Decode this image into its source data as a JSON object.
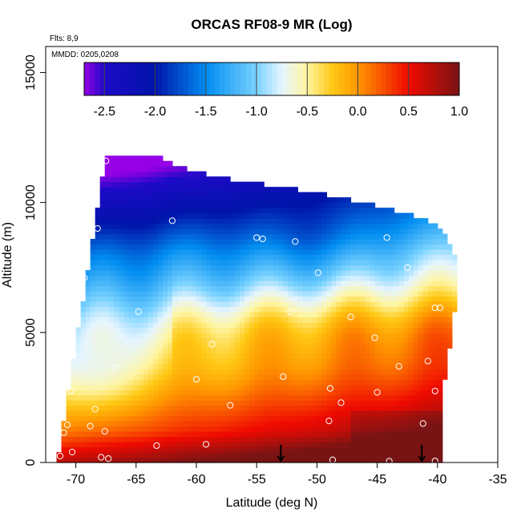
{
  "chart_data": {
    "type": "heatmap",
    "title": "ORCAS RF08-9 MR (Log)",
    "xlabel": "Latitude (deg N)",
    "ylabel": "Altitude (m)",
    "flights_label": "Flts: 8,9",
    "dates_label": "MMDD: 0205,0208",
    "xlim": [
      -72.5,
      -35
    ],
    "ylim": [
      0,
      16000
    ],
    "xticks": [
      -70,
      -65,
      -60,
      -55,
      -50,
      -45,
      -40,
      -35
    ],
    "xtick_labels": [
      "-70",
      "-65",
      "-60",
      "-55",
      "-50",
      "-45",
      "-40",
      "-35"
    ],
    "yticks": [
      0,
      5000,
      10000,
      15000
    ],
    "ytick_labels": [
      "0",
      "5000",
      "10000",
      "15000"
    ],
    "colorbar": {
      "range": [
        -2.7,
        1.0
      ],
      "ticks": [
        -2.5,
        -2.0,
        -1.5,
        -1.0,
        -0.5,
        0.0,
        0.5,
        1.0
      ],
      "tick_labels": [
        "-2.5",
        "-2.0",
        "-1.5",
        "-1.0",
        "-0.5",
        "0.0",
        "0.5",
        "1.0"
      ]
    },
    "surface_markers_lat": [
      -53,
      -41.3
    ],
    "domain_top": [
      [
        -71.5,
        0
      ],
      [
        -70.5,
        3000
      ],
      [
        -69.5,
        6000
      ],
      [
        -68.3,
        9500
      ],
      [
        -67.6,
        11700
      ],
      [
        -65,
        11800
      ],
      [
        -63.2,
        11900
      ],
      [
        -62,
        11500
      ],
      [
        -60,
        11200
      ],
      [
        -57,
        10900
      ],
      [
        -53,
        10600
      ],
      [
        -49,
        10300
      ],
      [
        -45,
        9900
      ],
      [
        -42,
        9500
      ],
      [
        -40,
        9200
      ],
      [
        -38.5,
        8000
      ],
      [
        -38.3,
        7000
      ],
      [
        -38.8,
        5000
      ],
      [
        -39.5,
        3000
      ],
      [
        -39.8,
        0
      ]
    ],
    "sample_points": [
      [
        -67.5,
        11600
      ],
      [
        -68.2,
        9000
      ],
      [
        -69.3,
        7100
      ],
      [
        -70.2,
        6000
      ],
      [
        -62,
        9300
      ],
      [
        -55,
        8650
      ],
      [
        -54.5,
        8600
      ],
      [
        -51.8,
        8500
      ],
      [
        -44.2,
        8650
      ],
      [
        -42.5,
        7500
      ],
      [
        -49.9,
        7300
      ],
      [
        -39.8,
        5950
      ],
      [
        -40.2,
        5950
      ],
      [
        -52.2,
        5800
      ],
      [
        -47.2,
        5600
      ],
      [
        -64.8,
        5800
      ],
      [
        -58.7,
        4550
      ],
      [
        -45.2,
        4800
      ],
      [
        -66.8,
        3650
      ],
      [
        -60,
        3200
      ],
      [
        -52.8,
        3300
      ],
      [
        -43.2,
        3700
      ],
      [
        -40.8,
        3900
      ],
      [
        -70.4,
        2750
      ],
      [
        -68.4,
        2050
      ],
      [
        -57.2,
        2200
      ],
      [
        -48.9,
        2850
      ],
      [
        -48,
        2300
      ],
      [
        -45,
        2700
      ],
      [
        -40.2,
        2750
      ],
      [
        -71,
        1150
      ],
      [
        -70.7,
        1450
      ],
      [
        -68.8,
        1400
      ],
      [
        -67.6,
        1200
      ],
      [
        -49,
        1600
      ],
      [
        -41.2,
        1500
      ],
      [
        -71.3,
        250
      ],
      [
        -70.3,
        400
      ],
      [
        -67.9,
        200
      ],
      [
        -67.3,
        150
      ],
      [
        -63.3,
        650
      ],
      [
        -59.2,
        700
      ],
      [
        -48.7,
        100
      ],
      [
        -44,
        50
      ],
      [
        -40.2,
        60
      ]
    ]
  }
}
